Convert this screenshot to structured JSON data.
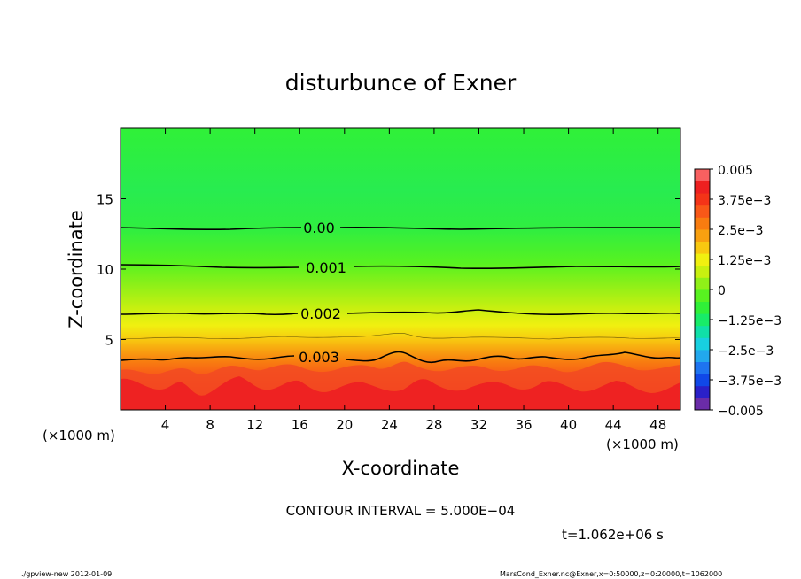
{
  "chart_data": {
    "type": "heatmap",
    "subtype": "filled-contour",
    "title": "disturbunce of Exner",
    "xlabel": "X-coordinate",
    "ylabel": "Z-coordinate",
    "x_unit": "(×1000 m)",
    "y_unit": "(×1000 m)",
    "xlim": [
      0,
      50
    ],
    "ylim": [
      0,
      20
    ],
    "x_ticks": [
      4,
      8,
      12,
      16,
      20,
      24,
      28,
      32,
      36,
      40,
      44,
      48
    ],
    "y_ticks": [
      5,
      10,
      15
    ],
    "colorbar": {
      "labels": [
        "0.005",
        "3.75e−3",
        "2.5e−3",
        "1.25e−3",
        "0",
        "−1.25e−3",
        "−2.5e−3",
        "−3.75e−3",
        "−0.005"
      ],
      "min": -0.005,
      "max": 0.005,
      "colors": [
        "#6a2ca8",
        "#2a20c8",
        "#1048e8",
        "#1e74f0",
        "#22a8ee",
        "#18d0e0",
        "#10e0a8",
        "#18ec68",
        "#30f038",
        "#58f220",
        "#90f018",
        "#c8f010",
        "#f0f010",
        "#f8c810",
        "#f8a010",
        "#f87c10",
        "#f85818",
        "#f43418",
        "#ee2020",
        "#f86060"
      ]
    },
    "contour_labels": [
      {
        "text": "0.00",
        "value": 0.0
      },
      {
        "text": "0.001",
        "value": 0.001
      },
      {
        "text": "0.002",
        "value": 0.002
      },
      {
        "text": "0.003",
        "value": 0.003
      }
    ],
    "contour_interval_text": "CONTOUR INTERVAL = 5.000E−04",
    "time_text": "t=1.062e+06 s"
  },
  "footer": {
    "left": "./gpview-new 2012-01-09",
    "right": "MarsCond_Exner.nc@Exner,x=0:50000,z=0:20000,t=1062000"
  }
}
